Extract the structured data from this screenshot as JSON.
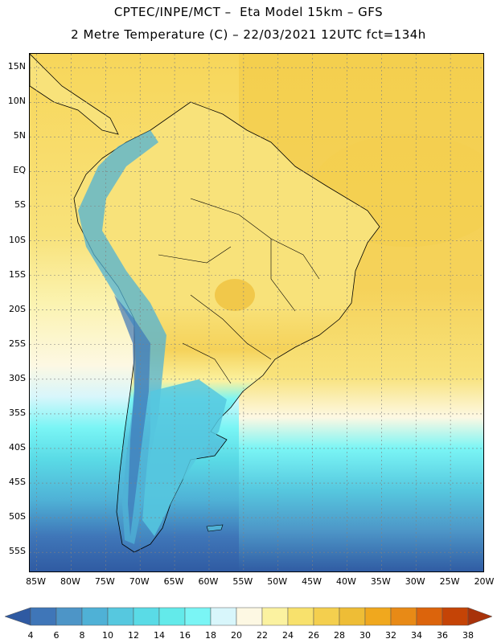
{
  "header": {
    "line1": "CPTEC/INPE/MCT –  Eta Model 15km – GFS",
    "line2": "2 Metre Temperature (C) – 22/03/2021 12UTC fct=134h"
  },
  "map": {
    "latitude_labels": [
      "15N",
      "10N",
      "5N",
      "EQ",
      "5S",
      "10S",
      "15S",
      "20S",
      "25S",
      "30S",
      "35S",
      "40S",
      "45S",
      "50S",
      "55S"
    ],
    "latitude_values": [
      15,
      10,
      5,
      0,
      -5,
      -10,
      -15,
      -20,
      -25,
      -30,
      -35,
      -40,
      -45,
      -50,
      -55
    ],
    "longitude_labels": [
      "85W",
      "80W",
      "75W",
      "70W",
      "65W",
      "60W",
      "55W",
      "50W",
      "45W",
      "40W",
      "35W",
      "30W",
      "25W",
      "20W"
    ],
    "longitude_values": [
      -85,
      -80,
      -75,
      -70,
      -65,
      -60,
      -55,
      -50,
      -45,
      -40,
      -35,
      -30,
      -25,
      -20
    ]
  },
  "legend": {
    "ticks": [
      "4",
      "6",
      "8",
      "10",
      "12",
      "14",
      "16",
      "18",
      "20",
      "22",
      "24",
      "26",
      "28",
      "30",
      "32",
      "34",
      "36",
      "38"
    ],
    "colors": [
      "#2f5aa2",
      "#3f76b8",
      "#4d95c7",
      "#4fb1d6",
      "#56c8df",
      "#5adbe6",
      "#63eaea",
      "#7af5f5",
      "#d8f6fb",
      "#fdf8e3",
      "#fbf2a0",
      "#f8e16c",
      "#f4cf4e",
      "#eebd36",
      "#f0a81e",
      "#e88a16",
      "#dc640c",
      "#c54406",
      "#a8320a"
    ]
  },
  "colors": {
    "border": "#000000",
    "grid": "#808080"
  }
}
